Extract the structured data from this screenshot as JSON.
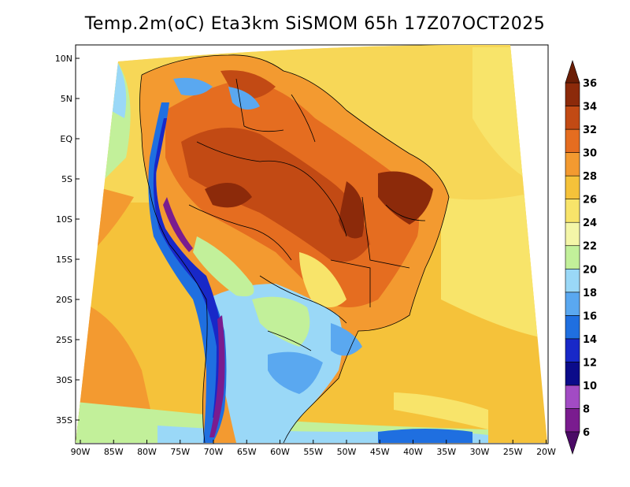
{
  "title": "Temp.2m(oC) Eta3km SiSMOM 65h 17Z07OCT2025",
  "lat_ticks": [
    {
      "value": 10,
      "label": "10N"
    },
    {
      "value": 5,
      "label": "5N"
    },
    {
      "value": 0,
      "label": "EQ"
    },
    {
      "value": -5,
      "label": "5S"
    },
    {
      "value": -10,
      "label": "10S"
    },
    {
      "value": -15,
      "label": "15S"
    },
    {
      "value": -20,
      "label": "20S"
    },
    {
      "value": -25,
      "label": "25S"
    },
    {
      "value": -30,
      "label": "30S"
    },
    {
      "value": -35,
      "label": "35S"
    }
  ],
  "lon_ticks": [
    {
      "value": -90,
      "label": "90W"
    },
    {
      "value": -85,
      "label": "85W"
    },
    {
      "value": -80,
      "label": "80W"
    },
    {
      "value": -75,
      "label": "75W"
    },
    {
      "value": -70,
      "label": "70W"
    },
    {
      "value": -65,
      "label": "65W"
    },
    {
      "value": -60,
      "label": "60W"
    },
    {
      "value": -55,
      "label": "55W"
    },
    {
      "value": -50,
      "label": "50W"
    },
    {
      "value": -45,
      "label": "45W"
    },
    {
      "value": -40,
      "label": "40W"
    },
    {
      "value": -35,
      "label": "35W"
    },
    {
      "value": -30,
      "label": "30W"
    },
    {
      "value": -25,
      "label": "25W"
    },
    {
      "value": -20,
      "label": "20W"
    }
  ],
  "colorbar": {
    "levels": [
      6,
      8,
      10,
      12,
      14,
      16,
      18,
      20,
      22,
      24,
      26,
      28,
      30,
      32,
      34,
      36
    ],
    "colors": [
      "#7a1c8f",
      "#a24bc4",
      "#0b0b8a",
      "#1828c8",
      "#1f6fe0",
      "#5aa8f0",
      "#9ad8f7",
      "#c2f09a",
      "#f4f6a8",
      "#f8e46a",
      "#f5c23a",
      "#f39a30",
      "#e56d20",
      "#c24a14",
      "#8c2a0a"
    ],
    "under_color": "#4b0a66",
    "over_color": "#6b1e06"
  }
}
